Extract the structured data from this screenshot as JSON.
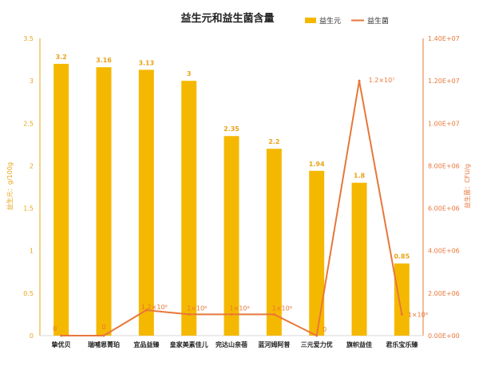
{
  "chart_data": {
    "type": "bar",
    "title": "益生元和益生菌含量",
    "categories": [
      "挚优贝",
      "瑞哺恩菁珀",
      "宜品益臻",
      "皇家美素佳儿",
      "完达山亲蓓",
      "蓝河姆阿普",
      "三元爱力优",
      "旗帜益佳",
      "君乐宝乐臻"
    ],
    "series": [
      {
        "name": "益生元",
        "type": "bar",
        "axis": "left",
        "values": [
          3.2,
          3.16,
          3.13,
          3,
          2.35,
          2.2,
          1.94,
          1.8,
          0.85
        ],
        "labels": [
          "3.2",
          "3.16",
          "3.13",
          "3",
          "2.35",
          "2.2",
          "1.94",
          "1.8",
          "0.85"
        ]
      },
      {
        "name": "益生菌",
        "type": "line",
        "axis": "right",
        "values": [
          0,
          0,
          1200000,
          1000000,
          1000000,
          1000000,
          0,
          12000000,
          1000000
        ],
        "labels": [
          "0",
          "0",
          "1.2×10⁶",
          "1×10⁶",
          "1×10⁶",
          "1×10⁶",
          "0",
          "1.2×10⁷",
          "1×10⁶"
        ]
      }
    ],
    "y_left": {
      "label": "益生元：g/100g",
      "ylim": [
        0,
        3.5
      ],
      "ticks": [
        "0",
        "0.5",
        "1",
        "1.5",
        "2",
        "2.5",
        "3",
        "3.5"
      ]
    },
    "y_right": {
      "label": "益生菌：CFU/g",
      "ylim": [
        0,
        14000000
      ],
      "ticks": [
        "0.00E+00",
        "2.00E+06",
        "4.00E+06",
        "6.00E+06",
        "8.00E+06",
        "1.00E+07",
        "1.20E+07",
        "1.40E+07"
      ]
    },
    "legend_position": "top-right",
    "grid": false,
    "colors": {
      "bar": "#f5b800",
      "line": "#e8773a",
      "left_axis": "#e8a317",
      "right_axis": "#e8773a"
    }
  }
}
